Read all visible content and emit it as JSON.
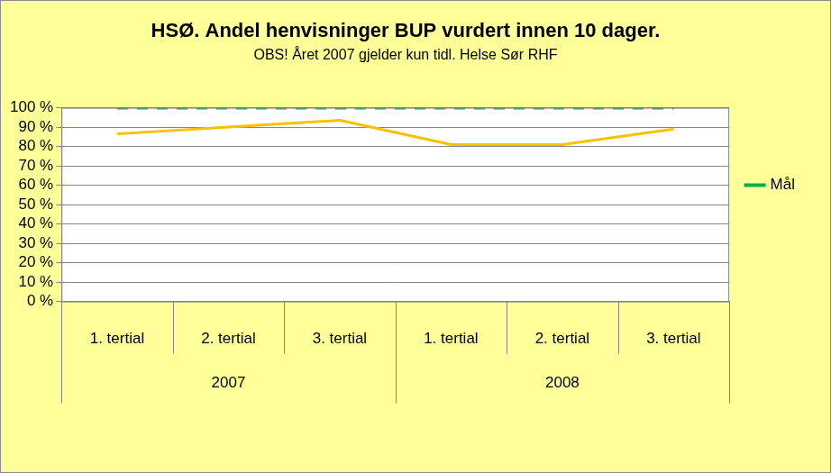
{
  "chart_data": {
    "type": "line",
    "title": "HSØ. Andel henvisninger BUP vurdert innen 10 dager.",
    "subtitle": "OBS! Året 2007 gjelder kun tidl. Helse Sør RHF",
    "categories": [
      [
        "1. tertial",
        "2007"
      ],
      [
        "2. tertial",
        "2007"
      ],
      [
        "3. tertial",
        "2007"
      ],
      [
        "1. tertial",
        "2008"
      ],
      [
        "2. tertial",
        "2008"
      ],
      [
        "3. tertial",
        "2008"
      ]
    ],
    "series": [
      {
        "color": "#FFC000",
        "line_style": "solid",
        "marker": "none",
        "values": [
          86.5,
          90,
          93.5,
          81,
          81,
          89
        ]
      },
      {
        "name": "Mål",
        "color": "#00B050",
        "line_style": "dashed",
        "marker": "none",
        "values": [
          100,
          100,
          100,
          100,
          100,
          100
        ]
      }
    ],
    "ylim": [
      0,
      100
    ],
    "yticks": [
      {
        "value": 0,
        "label": "0 %"
      },
      {
        "value": 10,
        "label": "10 %"
      },
      {
        "value": 20,
        "label": "20 %"
      },
      {
        "value": 30,
        "label": "30 %"
      },
      {
        "value": 40,
        "label": "40 %"
      },
      {
        "value": 50,
        "label": "50 %"
      },
      {
        "value": 60,
        "label": "60 %"
      },
      {
        "value": 70,
        "label": "70 %"
      },
      {
        "value": 80,
        "label": "80 %"
      },
      {
        "value": 90,
        "label": "90 %"
      },
      {
        "value": 100,
        "label": "100 %"
      }
    ],
    "grid": true,
    "legend": "right"
  }
}
